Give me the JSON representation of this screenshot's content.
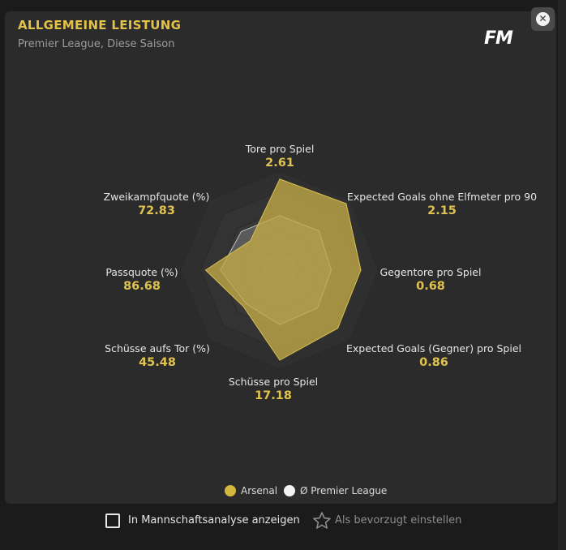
{
  "header": {
    "title": "ALLGEMEINE LEISTUNG",
    "subtitle": "Premier League, Diese Saison",
    "logo": "FM",
    "close_icon": "close-icon"
  },
  "colors": {
    "accent": "#e0c24f",
    "team_fill": "#c3aa46",
    "league_fill": "#d9d9d9",
    "panel": "#2b2b2b"
  },
  "chart_data": {
    "type": "radar",
    "axes": [
      {
        "label": "Tore pro Spiel",
        "value": "2.61",
        "team_fraction": 0.92,
        "league_fraction": 0.55
      },
      {
        "label": "Expected Goals ohne Elfmeter pro 90",
        "value": "2.15",
        "team_fraction": 0.95,
        "league_fraction": 0.56
      },
      {
        "label": "Gegentore pro Spiel",
        "value": "0.68",
        "team_fraction": 0.82,
        "league_fraction": 0.52
      },
      {
        "label": "Expected Goals (Gegner) pro Spiel",
        "value": "0.86",
        "team_fraction": 0.83,
        "league_fraction": 0.54
      },
      {
        "label": "Schüsse pro Spiel",
        "value": "17.18",
        "team_fraction": 0.91,
        "league_fraction": 0.55
      },
      {
        "label": "Schüsse aufs Tor (%)",
        "value": "45.48",
        "team_fraction": 0.52,
        "league_fraction": 0.48
      },
      {
        "label": "Passquote (%)",
        "value": "86.68",
        "team_fraction": 0.75,
        "league_fraction": 0.6
      },
      {
        "label": "Zweikampfquote (%)",
        "value": "72.83",
        "team_fraction": 0.42,
        "league_fraction": 0.55
      }
    ],
    "series": [
      {
        "name": "Arsenal",
        "color": "#c3aa46"
      },
      {
        "name": "Ø Premier League",
        "color": "#d9d9d9"
      }
    ]
  },
  "legend": {
    "team": "Arsenal",
    "league": "Ø Premier League"
  },
  "footer": {
    "checkbox_label": "In Mannschaftsanalyse anzeigen",
    "favorite_label": "Als bevorzugt einstellen",
    "star_icon": "star-icon"
  }
}
